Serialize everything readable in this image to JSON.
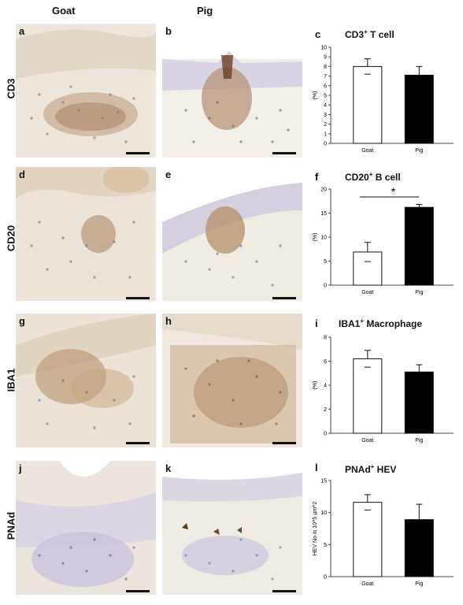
{
  "columns": [
    "Goat",
    "Pig"
  ],
  "rows": [
    "CD3",
    "CD20",
    "IBA1",
    "PNAd"
  ],
  "panel_letters": [
    "a",
    "b",
    "d",
    "e",
    "g",
    "h",
    "j",
    "k"
  ],
  "charts": [
    {
      "letter": "c",
      "title_main": "CD3",
      "title_sup": "+",
      "title_rest": " T cell",
      "ylabel": "(%)",
      "significance": ""
    },
    {
      "letter": "f",
      "title_main": "CD20",
      "title_sup": "+",
      "title_rest": " B cell",
      "ylabel": "(%)",
      "significance": "*"
    },
    {
      "letter": "i",
      "title_main": "IBA1",
      "title_sup": "+",
      "title_rest": " Macrophage",
      "ylabel": "(%)",
      "significance": ""
    },
    {
      "letter": "l",
      "title_main": "PNAd",
      "title_sup": "+",
      "title_rest": " HEV",
      "ylabel": "HEV No in 10^5 µm^2",
      "significance": ""
    }
  ],
  "chart_data": [
    {
      "type": "bar",
      "categories": [
        "Goat",
        "Pig"
      ],
      "values": [
        8.0,
        7.1
      ],
      "errors": [
        0.8,
        0.9
      ],
      "ylim": [
        0,
        10
      ],
      "yticks": [
        0,
        1,
        2,
        3,
        4,
        5,
        6,
        7,
        8,
        9,
        10
      ],
      "ylabel": "(%)",
      "title": "CD3+ T cell",
      "colors": [
        "#ffffff",
        "#000000"
      ]
    },
    {
      "type": "bar",
      "categories": [
        "Goat",
        "Pig"
      ],
      "values": [
        6.9,
        16.2
      ],
      "errors": [
        2.0,
        0.6
      ],
      "ylim": [
        0,
        20
      ],
      "yticks": [
        0,
        5,
        10,
        15,
        20
      ],
      "ylabel": "(%)",
      "title": "CD20+ B cell",
      "colors": [
        "#ffffff",
        "#000000"
      ]
    },
    {
      "type": "bar",
      "categories": [
        "Goat",
        "Pig"
      ],
      "values": [
        6.2,
        5.1
      ],
      "errors": [
        0.7,
        0.6
      ],
      "ylim": [
        0,
        8
      ],
      "yticks": [
        0,
        2,
        4,
        6,
        8
      ],
      "ylabel": "(%)",
      "title": "IBA1+ Macrophage",
      "colors": [
        "#ffffff",
        "#000000"
      ]
    },
    {
      "type": "bar",
      "categories": [
        "Goat",
        "Pig"
      ],
      "values": [
        11.6,
        8.9
      ],
      "errors": [
        1.2,
        2.4
      ],
      "ylim": [
        0,
        15
      ],
      "yticks": [
        0,
        5,
        10,
        15
      ],
      "ylabel": "HEV No in 10^5 µm^2",
      "title": "PNAd+ HEV",
      "colors": [
        "#ffffff",
        "#000000"
      ]
    }
  ],
  "palette": {
    "tissue_light": "#ece4d8",
    "tissue_mid": "#d9cdbd",
    "nuclei": "#5a5f96",
    "stain_brown": "#8a5a2a"
  }
}
